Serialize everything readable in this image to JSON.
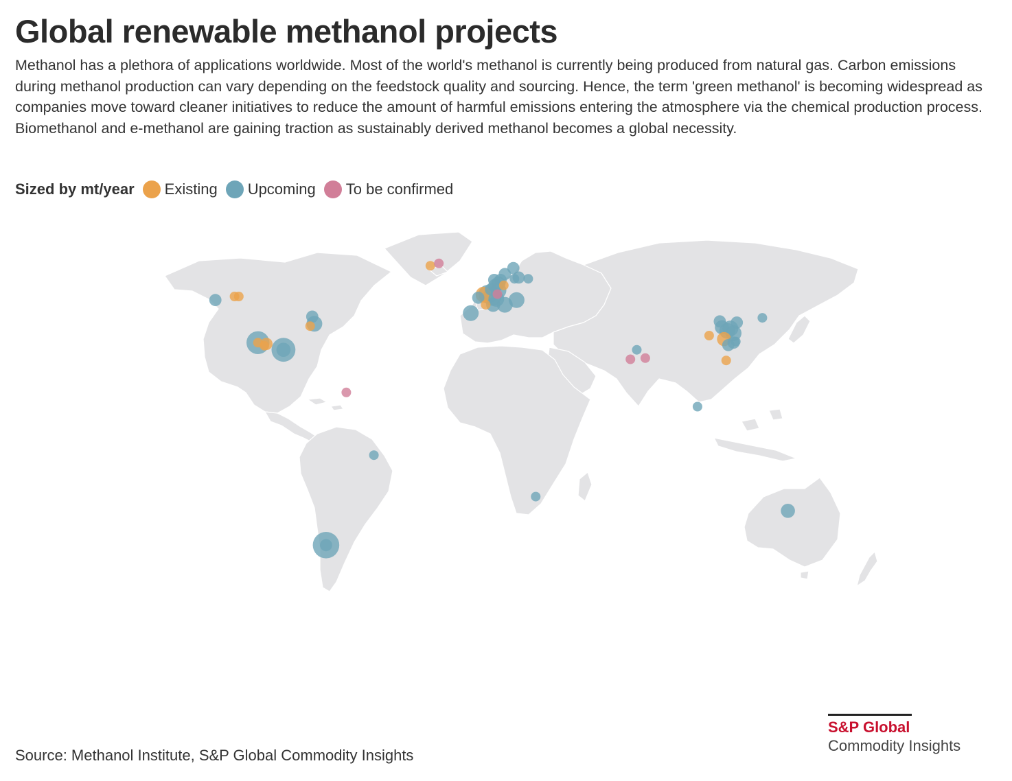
{
  "header": {
    "title": "Global renewable methanol projects",
    "description": "Methanol has a plethora of applications worldwide. Most of the world's methanol is currently being produced from natural gas. Carbon emissions during methanol production can vary depending on the feedstock quality and sourcing. Hence, the term 'green methanol' is becoming widespread as companies move toward cleaner initiatives to reduce the amount of harmful emissions entering the atmosphere via the chemical production process. Biomethanol and e-methanol are gaining traction as sustainably derived methanol becomes a global necessity."
  },
  "legend": {
    "title": "Sized by mt/year",
    "items": [
      {
        "label": "Existing",
        "color": "#eba24b"
      },
      {
        "label": "Upcoming",
        "color": "#6ea5b8"
      },
      {
        "label": "To be confirmed",
        "color": "#d17e98"
      }
    ]
  },
  "map": {
    "land_color": "#e3e3e5",
    "border_color": "#ffffff",
    "projects": [
      {
        "status": "Upcoming",
        "lon": -123.0,
        "lat": 49.5,
        "size": 2
      },
      {
        "status": "Existing",
        "lon": -114.0,
        "lat": 51.0,
        "size": 1
      },
      {
        "status": "Existing",
        "lon": -112.0,
        "lat": 51.0,
        "size": 1
      },
      {
        "status": "Upcoming",
        "lon": -103.0,
        "lat": 31.5,
        "size": 10
      },
      {
        "status": "Existing",
        "lon": -103.0,
        "lat": 31.5,
        "size": 1
      },
      {
        "status": "Existing",
        "lon": -99.0,
        "lat": 31.0,
        "size": 2
      },
      {
        "status": "Existing",
        "lon": -100.0,
        "lat": 30.2,
        "size": 1
      },
      {
        "status": "Upcoming",
        "lon": -91.0,
        "lat": 28.5,
        "size": 11
      },
      {
        "status": "Upcoming",
        "lon": -91.0,
        "lat": 28.5,
        "size": 3
      },
      {
        "status": "Upcoming",
        "lon": -76.5,
        "lat": 39.5,
        "size": 4
      },
      {
        "status": "Upcoming",
        "lon": -77.5,
        "lat": 42.5,
        "size": 2
      },
      {
        "status": "Existing",
        "lon": -78.5,
        "lat": 38.5,
        "size": 1
      },
      {
        "status": "To be confirmed",
        "lon": -61.5,
        "lat": 10.5,
        "size": 1
      },
      {
        "status": "Upcoming",
        "lon": -48.5,
        "lat": -16.0,
        "size": 1
      },
      {
        "status": "Upcoming",
        "lon": -71.0,
        "lat": -54.0,
        "size": 14
      },
      {
        "status": "Upcoming",
        "lon": -71.0,
        "lat": -54.0,
        "size": 2
      },
      {
        "status": "Existing",
        "lon": -22.0,
        "lat": 64.0,
        "size": 1
      },
      {
        "status": "To be confirmed",
        "lon": -18.0,
        "lat": 65.0,
        "size": 1
      },
      {
        "status": "Existing",
        "lon": 3.0,
        "lat": 51.8,
        "size": 4
      },
      {
        "status": "Upcoming",
        "lon": 5.0,
        "lat": 52.0,
        "size": 6
      },
      {
        "status": "Upcoming",
        "lon": 7.0,
        "lat": 51.0,
        "size": 6
      },
      {
        "status": "Upcoming",
        "lon": 9.0,
        "lat": 50.0,
        "size": 4
      },
      {
        "status": "Upcoming",
        "lon": 10.0,
        "lat": 53.5,
        "size": 4
      },
      {
        "status": "Upcoming",
        "lon": 8.5,
        "lat": 55.5,
        "size": 3
      },
      {
        "status": "Upcoming",
        "lon": 10.0,
        "lat": 56.5,
        "size": 3
      },
      {
        "status": "Upcoming",
        "lon": 6.5,
        "lat": 54.0,
        "size": 2
      },
      {
        "status": "Upcoming",
        "lon": 8.0,
        "lat": 58.0,
        "size": 2
      },
      {
        "status": "Upcoming",
        "lon": 11.0,
        "lat": 58.0,
        "size": 2
      },
      {
        "status": "Upcoming",
        "lon": 13.0,
        "lat": 60.5,
        "size": 2
      },
      {
        "status": "Upcoming",
        "lon": 17.0,
        "lat": 63.0,
        "size": 2
      },
      {
        "status": "Upcoming",
        "lon": 17.5,
        "lat": 58.5,
        "size": 1
      },
      {
        "status": "Existing",
        "lon": 12.5,
        "lat": 55.7,
        "size": 1
      },
      {
        "status": "To be confirmed",
        "lon": 9.5,
        "lat": 52.0,
        "size": 1
      },
      {
        "status": "Upcoming",
        "lon": 13.0,
        "lat": 47.5,
        "size": 4
      },
      {
        "status": "Upcoming",
        "lon": 18.5,
        "lat": 49.5,
        "size": 4
      },
      {
        "status": "Upcoming",
        "lon": 7.5,
        "lat": 47.5,
        "size": 3
      },
      {
        "status": "Existing",
        "lon": 4.0,
        "lat": 47.5,
        "size": 1
      },
      {
        "status": "Upcoming",
        "lon": -3.0,
        "lat": 44.0,
        "size": 4
      },
      {
        "status": "Upcoming",
        "lon": 19.5,
        "lat": 59.0,
        "size": 2
      },
      {
        "status": "Upcoming",
        "lon": 24.0,
        "lat": 58.5,
        "size": 1
      },
      {
        "status": "Upcoming",
        "lon": 0.5,
        "lat": 50.5,
        "size": 2
      },
      {
        "status": "Upcoming",
        "lon": 75.0,
        "lat": 28.5,
        "size": 1
      },
      {
        "status": "To be confirmed",
        "lon": 72.0,
        "lat": 24.5,
        "size": 1
      },
      {
        "status": "To be confirmed",
        "lon": 79.0,
        "lat": 25.0,
        "size": 1
      },
      {
        "status": "Existing",
        "lon": 109.0,
        "lat": 34.5,
        "size": 1
      },
      {
        "status": "Upcoming",
        "lon": 115.0,
        "lat": 38.0,
        "size": 3
      },
      {
        "status": "Upcoming",
        "lon": 117.5,
        "lat": 36.5,
        "size": 4
      },
      {
        "status": "Upcoming",
        "lon": 119.0,
        "lat": 37.5,
        "size": 4
      },
      {
        "status": "Upcoming",
        "lon": 120.5,
        "lat": 35.5,
        "size": 4
      },
      {
        "status": "Existing",
        "lon": 116.0,
        "lat": 33.0,
        "size": 3
      },
      {
        "status": "Upcoming",
        "lon": 118.0,
        "lat": 30.5,
        "size": 2
      },
      {
        "status": "Upcoming",
        "lon": 120.5,
        "lat": 31.5,
        "size": 2
      },
      {
        "status": "Upcoming",
        "lon": 122.0,
        "lat": 40.0,
        "size": 2
      },
      {
        "status": "Upcoming",
        "lon": 114.0,
        "lat": 40.5,
        "size": 2
      },
      {
        "status": "Upcoming",
        "lon": 121.5,
        "lat": 32.0,
        "size": 1
      },
      {
        "status": "Upcoming",
        "lon": 134.0,
        "lat": 42.0,
        "size": 1
      },
      {
        "status": "Existing",
        "lon": 117.0,
        "lat": 24.0,
        "size": 1
      },
      {
        "status": "Upcoming",
        "lon": 103.5,
        "lat": 4.5,
        "size": 1
      },
      {
        "status": "Upcoming",
        "lon": 27.5,
        "lat": -33.5,
        "size": 1
      },
      {
        "status": "Upcoming",
        "lon": 146.0,
        "lat": -39.5,
        "size": 3
      }
    ]
  },
  "footer": {
    "source": "Source: Methanol Institute, S&P Global Commodity Insights",
    "brand_name": "S&P Global",
    "brand_sub": "Commodity Insights"
  }
}
